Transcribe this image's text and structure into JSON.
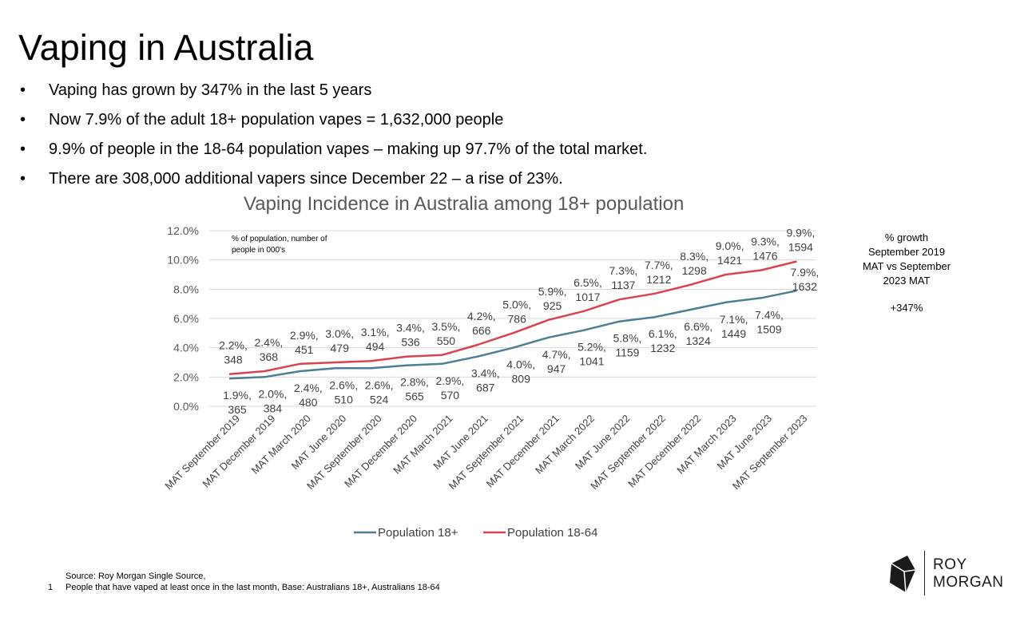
{
  "slide": {
    "title": "Vaping in Australia",
    "bullets": [
      "Vaping has grown by 347% in the last 5 years",
      "Now 7.9% of the adult 18+ population vapes = 1,632,000 people",
      "9.9% of people in the 18-64 population vapes – making up 97.7% of the total market.",
      "There are 308,000 additional vapers since December 22 – a rise of 23%."
    ],
    "bullet_char": "•",
    "side_note": [
      "% growth",
      "September 2019",
      "MAT vs September",
      "2023 MAT"
    ],
    "growth": "+347%",
    "footnote_lines": [
      "Source: Roy Morgan Single Source,",
      "People that have vaped at least once in the last month, Base: Australians 18+, Australians 18-64"
    ],
    "footnote_number": "1",
    "logo": {
      "line1": "ROY",
      "line2": "MORGAN"
    }
  },
  "chart_data": {
    "type": "line",
    "title": "Vaping Incidence in Australia among 18+ population",
    "annotation": [
      "% of population, number of",
      "people in 000's"
    ],
    "categories": [
      "MAT September 2019",
      "MAT December 2019",
      "MAT March 2020",
      "MAT June 2020",
      "MAT September 2020",
      "MAT December 2020",
      "MAT March 2021",
      "MAT June 2021",
      "MAT September 2021",
      "MAT December 2021",
      "MAT March 2022",
      "MAT June 2022",
      "MAT September 2022",
      "MAT December 2022",
      "MAT March 2023",
      "MAT June 2023",
      "MAT September 2023"
    ],
    "y_ticks": [
      "0.0%",
      "2.0%",
      "4.0%",
      "6.0%",
      "8.0%",
      "10.0%",
      "12.0%"
    ],
    "ylim": [
      0,
      12
    ],
    "legend_position": "bottom",
    "grid": true,
    "series": [
      {
        "name": "Population 18+",
        "color": "#4a7f94",
        "values": [
          1.9,
          2.0,
          2.4,
          2.6,
          2.6,
          2.8,
          2.9,
          3.4,
          4.0,
          4.7,
          5.2,
          5.8,
          6.1,
          6.6,
          7.1,
          7.4,
          7.9
        ],
        "people": [
          365,
          384,
          480,
          510,
          524,
          565,
          570,
          687,
          809,
          947,
          1041,
          1159,
          1232,
          1324,
          1449,
          1509,
          1632
        ],
        "labels_pct": [
          "1.9%,",
          "2.0%,",
          "2.4%,",
          "2.6%,",
          "2.6%,",
          "2.8%,",
          "2.9%,",
          "3.4%,",
          "4.0%,",
          "4.7%,",
          "5.2%,",
          "5.8%,",
          "6.1%,",
          "6.6%,",
          "7.1%,",
          "7.4%,",
          "7.9%,"
        ],
        "labels_num": [
          "365",
          "384",
          "480",
          "510",
          "524",
          "565",
          "570",
          "687",
          "809",
          "947",
          "1041",
          "1159",
          "1232",
          "1324",
          "1449",
          "1509",
          "1632"
        ]
      },
      {
        "name": "Population 18-64",
        "color": "#d9434f",
        "values": [
          2.2,
          2.4,
          2.9,
          3.0,
          3.1,
          3.4,
          3.5,
          4.2,
          5.0,
          5.9,
          6.5,
          7.3,
          7.7,
          8.3,
          9.0,
          9.3,
          9.9
        ],
        "people": [
          348,
          368,
          451,
          479,
          494,
          536,
          550,
          666,
          786,
          925,
          1017,
          1137,
          1212,
          1298,
          1421,
          1476,
          1594
        ],
        "labels_pct": [
          "2.2%,",
          "2.4%,",
          "2.9%,",
          "3.0%,",
          "3.1%,",
          "3.4%,",
          "3.5%,",
          "4.2%,",
          "5.0%,",
          "5.9%,",
          "6.5%,",
          "7.3%,",
          "7.7%,",
          "8.3%,",
          "9.0%,",
          "9.3%,",
          "9.9%,"
        ],
        "labels_num": [
          "348",
          "368",
          "451",
          "479",
          "494",
          "536",
          "550",
          "666",
          "786",
          "925",
          "1017",
          "1137",
          "1212",
          "1298",
          "1421",
          "1476",
          "1594"
        ]
      }
    ]
  }
}
